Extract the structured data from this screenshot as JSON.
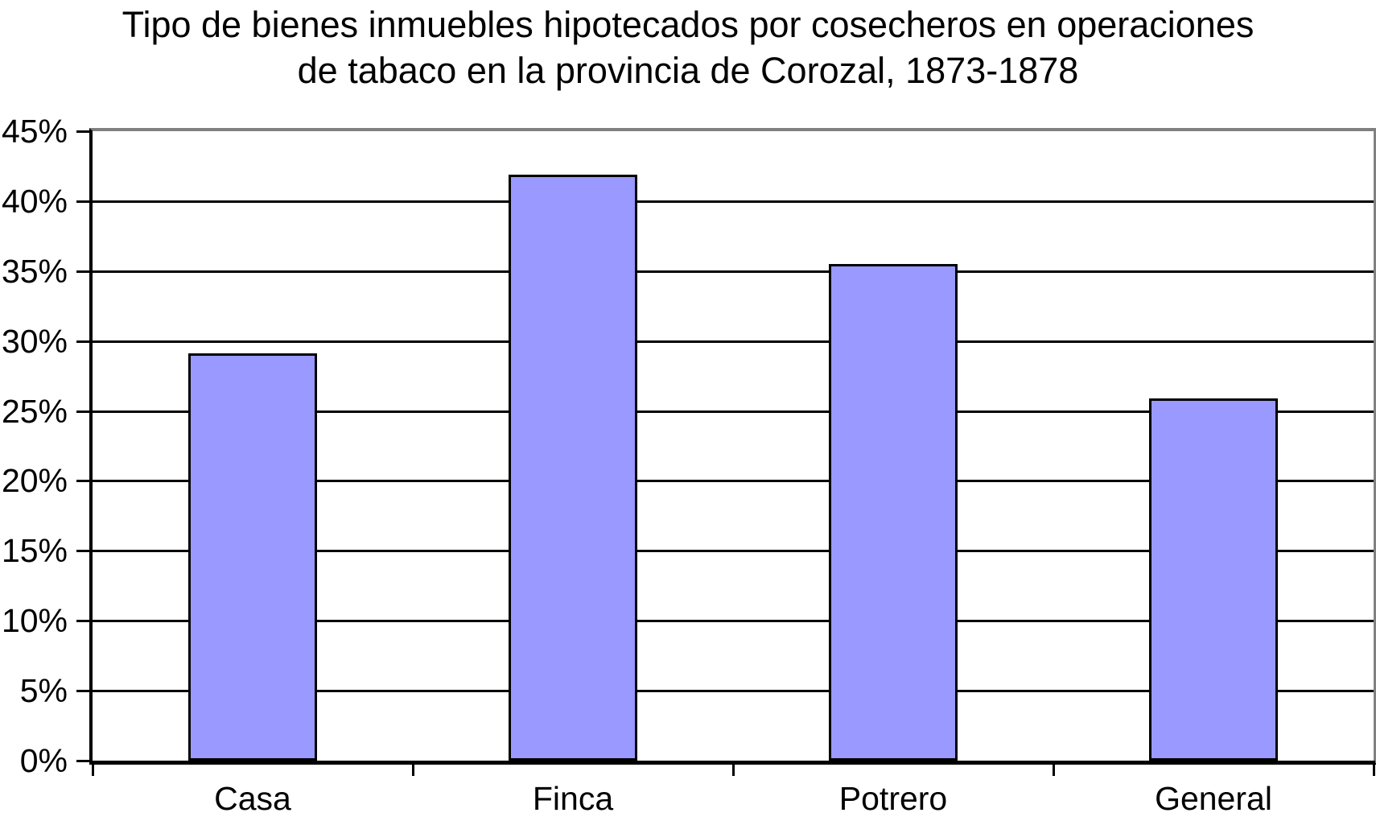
{
  "title": {
    "line1": "Tipo de bienes inmuebles hipotecados por cosecheros en operaciones",
    "line2": "de tabaco en la provincia de Corozal, 1873-1878"
  },
  "y_axis": {
    "tick_labels": [
      "0%",
      "5%",
      "10%",
      "15%",
      "20%",
      "25%",
      "30%",
      "35%",
      "40%",
      "45%"
    ]
  },
  "x_axis": {
    "category_labels": [
      "Casa",
      "Finca",
      "Potrero",
      "General"
    ]
  },
  "chart_data": {
    "type": "bar",
    "title": "Tipo de bienes inmuebles hipotecados por cosecheros en operaciones de tabaco en la provincia de Corozal, 1873-1878",
    "categories": [
      "Casa",
      "Finca",
      "Potrero",
      "General"
    ],
    "values": [
      29.1,
      41.9,
      35.5,
      25.9
    ],
    "xlabel": "",
    "ylabel": "",
    "ylim": [
      0,
      45
    ],
    "ytick_step": 5,
    "ytick_format": "percent",
    "grid": true,
    "legend": "none",
    "colors": {
      "bar_fill": "#9999FF",
      "bar_border": "#000000",
      "gridline": "#000000",
      "axis": "#000000",
      "plot_border": "#808080",
      "background": "#FFFFFF",
      "text": "#000000"
    }
  }
}
